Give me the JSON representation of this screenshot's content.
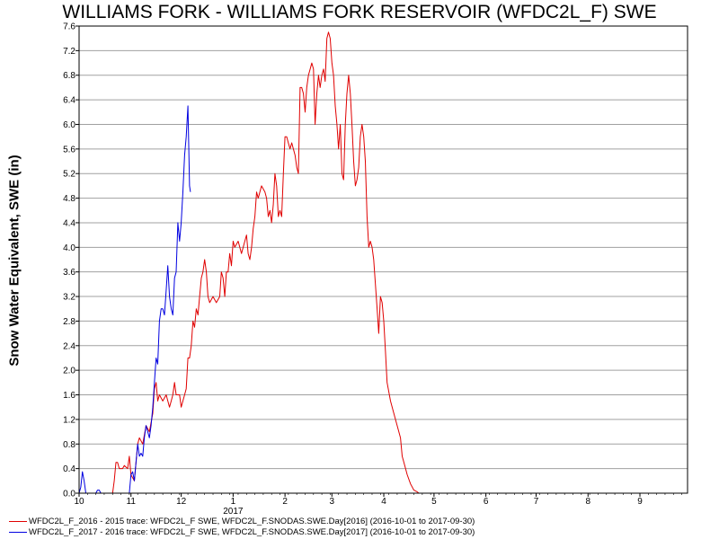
{
  "chart_data": {
    "type": "line",
    "title": "WILLIAMS FORK - WILLIAMS FORK RESERVOIR (WFDC2L_F) SWE",
    "ylabel": "Snow Water Equivalent, SWE (in)",
    "xlabel": "",
    "ylim": [
      0,
      7.6
    ],
    "yticks": [
      "0.0",
      "0.4",
      "0.8",
      "1.2",
      "1.6",
      "2.0",
      "2.4",
      "2.8",
      "3.2",
      "3.6",
      "4.0",
      "4.4",
      "4.8",
      "5.2",
      "5.6",
      "6.0",
      "6.4",
      "6.8",
      "7.2",
      "7.6"
    ],
    "xticks": [
      "10",
      "11",
      "12",
      "1",
      "2",
      "3",
      "4",
      "5",
      "6",
      "7",
      "8",
      "9"
    ],
    "year_label": "2017",
    "grid": true,
    "legend_position": "bottom",
    "x_unit": "day of water year (Oct 1 = 0)",
    "series": [
      {
        "name": "WFDC2L_F_2016 - 2015 trace: WFDC2L_F SWE, WFDC2L_F.SNODAS.SWE.Day[2016] (2016-10-01 to 2017-09-30)",
        "color": "#e00000",
        "points": [
          [
            0,
            0
          ],
          [
            20,
            0
          ],
          [
            21,
            0.2
          ],
          [
            22,
            0.5
          ],
          [
            23,
            0.5
          ],
          [
            24,
            0.4
          ],
          [
            26,
            0.4
          ],
          [
            27,
            0.45
          ],
          [
            29,
            0.4
          ],
          [
            30,
            0.6
          ],
          [
            31,
            0.3
          ],
          [
            33,
            0.2
          ],
          [
            35,
            0.8
          ],
          [
            36,
            0.9
          ],
          [
            38,
            0.8
          ],
          [
            40,
            1.1
          ],
          [
            42,
            1.0
          ],
          [
            44,
            1.3
          ],
          [
            45,
            1.7
          ],
          [
            46,
            1.8
          ],
          [
            47,
            1.5
          ],
          [
            48,
            1.6
          ],
          [
            50,
            1.5
          ],
          [
            52,
            1.6
          ],
          [
            54,
            1.4
          ],
          [
            55,
            1.5
          ],
          [
            56,
            1.6
          ],
          [
            57,
            1.8
          ],
          [
            58,
            1.6
          ],
          [
            60,
            1.6
          ],
          [
            61,
            1.4
          ],
          [
            62,
            1.5
          ],
          [
            63,
            1.6
          ],
          [
            64,
            1.7
          ],
          [
            65,
            2.2
          ],
          [
            66,
            2.2
          ],
          [
            67,
            2.4
          ],
          [
            68,
            2.8
          ],
          [
            69,
            2.7
          ],
          [
            70,
            3.0
          ],
          [
            71,
            2.9
          ],
          [
            72,
            3.2
          ],
          [
            73,
            3.5
          ],
          [
            74,
            3.6
          ],
          [
            75,
            3.8
          ],
          [
            76,
            3.6
          ],
          [
            77,
            3.2
          ],
          [
            78,
            3.1
          ],
          [
            80,
            3.2
          ],
          [
            82,
            3.1
          ],
          [
            84,
            3.2
          ],
          [
            85,
            3.6
          ],
          [
            86,
            3.5
          ],
          [
            87,
            3.2
          ],
          [
            88,
            3.6
          ],
          [
            89,
            3.6
          ],
          [
            90,
            3.9
          ],
          [
            91,
            3.7
          ],
          [
            92,
            4.1
          ],
          [
            93,
            4.0
          ],
          [
            95,
            4.1
          ],
          [
            97,
            3.9
          ],
          [
            99,
            4.1
          ],
          [
            100,
            4.2
          ],
          [
            101,
            3.9
          ],
          [
            102,
            3.8
          ],
          [
            103,
            4.0
          ],
          [
            104,
            4.3
          ],
          [
            105,
            4.5
          ],
          [
            106,
            4.9
          ],
          [
            107,
            4.8
          ],
          [
            109,
            5.0
          ],
          [
            111,
            4.9
          ],
          [
            112,
            4.8
          ],
          [
            113,
            4.5
          ],
          [
            114,
            4.6
          ],
          [
            115,
            4.4
          ],
          [
            116,
            4.7
          ],
          [
            117,
            5.2
          ],
          [
            118,
            5.0
          ],
          [
            119,
            4.5
          ],
          [
            120,
            4.6
          ],
          [
            121,
            4.5
          ],
          [
            122,
            5.2
          ],
          [
            123,
            5.8
          ],
          [
            124,
            5.8
          ],
          [
            125,
            5.7
          ],
          [
            126,
            5.6
          ],
          [
            127,
            5.7
          ],
          [
            128,
            5.6
          ],
          [
            129,
            5.5
          ],
          [
            130,
            5.3
          ],
          [
            131,
            5.2
          ],
          [
            132,
            6.6
          ],
          [
            133,
            6.6
          ],
          [
            134,
            6.5
          ],
          [
            135,
            6.2
          ],
          [
            136,
            6.6
          ],
          [
            137,
            6.8
          ],
          [
            138,
            6.9
          ],
          [
            139,
            7.0
          ],
          [
            140,
            6.9
          ],
          [
            141,
            6.0
          ],
          [
            142,
            6.5
          ],
          [
            143,
            6.8
          ],
          [
            144,
            6.6
          ],
          [
            145,
            6.8
          ],
          [
            146,
            6.9
          ],
          [
            147,
            6.7
          ],
          [
            148,
            7.4
          ],
          [
            149,
            7.5
          ],
          [
            150,
            7.4
          ],
          [
            151,
            7.0
          ],
          [
            152,
            6.8
          ],
          [
            153,
            6.3
          ],
          [
            154,
            6.0
          ],
          [
            155,
            5.6
          ],
          [
            156,
            6.0
          ],
          [
            157,
            5.2
          ],
          [
            158,
            5.1
          ],
          [
            159,
            6.0
          ],
          [
            160,
            6.5
          ],
          [
            161,
            6.8
          ],
          [
            162,
            6.5
          ],
          [
            163,
            6.0
          ],
          [
            164,
            5.4
          ],
          [
            165,
            5.0
          ],
          [
            166,
            5.1
          ],
          [
            167,
            5.3
          ],
          [
            168,
            5.8
          ],
          [
            169,
            6.0
          ],
          [
            170,
            5.8
          ],
          [
            171,
            5.4
          ],
          [
            172,
            4.5
          ],
          [
            173,
            4.0
          ],
          [
            174,
            4.1
          ],
          [
            175,
            4.0
          ],
          [
            176,
            3.8
          ],
          [
            177,
            3.4
          ],
          [
            178,
            3.0
          ],
          [
            179,
            2.6
          ],
          [
            180,
            3.2
          ],
          [
            181,
            3.1
          ],
          [
            182,
            2.8
          ],
          [
            183,
            2.3
          ],
          [
            184,
            1.8
          ],
          [
            186,
            1.5
          ],
          [
            188,
            1.3
          ],
          [
            190,
            1.1
          ],
          [
            192,
            0.9
          ],
          [
            193,
            0.6
          ],
          [
            194,
            0.5
          ],
          [
            196,
            0.3
          ],
          [
            198,
            0.15
          ],
          [
            200,
            0.05
          ],
          [
            202,
            0.02
          ],
          [
            203,
            0.0
          ]
        ]
      },
      {
        "name": "WFDC2L_F_2017 - 2016 trace: WFDC2L_F SWE, WFDC2L_F.SNODAS.SWE.Day[2017] (2016-10-01 to 2017-09-30)",
        "color": "#0000e0",
        "points": [
          [
            0,
            0
          ],
          [
            1,
            0.1
          ],
          [
            2,
            0.35
          ],
          [
            3,
            0.2
          ],
          [
            4,
            0.0
          ],
          [
            10,
            0.0
          ],
          [
            11,
            0.05
          ],
          [
            12,
            0.05
          ],
          [
            13,
            0.0
          ],
          [
            30,
            0.0
          ],
          [
            31,
            0.3
          ],
          [
            32,
            0.35
          ],
          [
            33,
            0.2
          ],
          [
            34,
            0.5
          ],
          [
            35,
            0.8
          ],
          [
            36,
            0.6
          ],
          [
            37,
            0.65
          ],
          [
            38,
            0.6
          ],
          [
            39,
            0.9
          ],
          [
            40,
            1.1
          ],
          [
            41,
            1.0
          ],
          [
            42,
            0.9
          ],
          [
            43,
            1.1
          ],
          [
            44,
            1.4
          ],
          [
            45,
            1.8
          ],
          [
            46,
            2.2
          ],
          [
            47,
            2.1
          ],
          [
            48,
            2.8
          ],
          [
            49,
            3.0
          ],
          [
            50,
            3.0
          ],
          [
            51,
            2.9
          ],
          [
            52,
            3.3
          ],
          [
            53,
            3.7
          ],
          [
            54,
            3.2
          ],
          [
            55,
            3.0
          ],
          [
            56,
            2.9
          ],
          [
            57,
            3.5
          ],
          [
            58,
            3.6
          ],
          [
            59,
            4.4
          ],
          [
            60,
            4.1
          ],
          [
            61,
            4.4
          ],
          [
            62,
            4.9
          ],
          [
            63,
            5.5
          ],
          [
            64,
            5.8
          ],
          [
            65,
            6.3
          ],
          [
            66,
            5.0
          ],
          [
            66.5,
            4.9
          ]
        ]
      }
    ]
  }
}
